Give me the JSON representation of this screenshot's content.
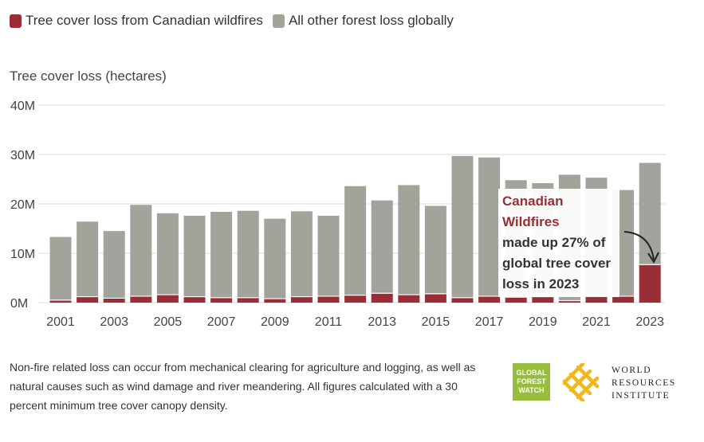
{
  "legend": {
    "series1_label": "Tree cover loss from Canadian wildfires",
    "series2_label": "All other forest loss globally"
  },
  "axis_title": "Tree cover loss (hectares)",
  "callout": {
    "title": "Canadian Wildfires",
    "body": "made up 27% of global tree cover loss in 2023"
  },
  "footnote": "Non-fire related loss can occur from mechanical clearing for agriculture and logging, as well as natural causes such as wind damage and river meandering. All figures calculated with a 30 percent minimum tree cover canopy density.",
  "logos": {
    "gfw": "GLOBAL FOREST WATCH",
    "wri_line1": "WORLD",
    "wri_line2": "RESOURCES",
    "wri_line3": "INSTITUTE"
  },
  "colors": {
    "canadian": "#9b2d36",
    "other": "#a3a29b",
    "grid": "#dddddd",
    "gfw_green": "#97bd3d",
    "wri_gold": "#f2b81b"
  },
  "chart_data": {
    "type": "bar",
    "stacked": true,
    "categories": [
      "2001",
      "2002",
      "2003",
      "2004",
      "2005",
      "2006",
      "2007",
      "2008",
      "2009",
      "2010",
      "2011",
      "2012",
      "2013",
      "2014",
      "2015",
      "2016",
      "2017",
      "2018",
      "2019",
      "2020",
      "2021",
      "2022",
      "2023"
    ],
    "x_tick_labels": [
      "2001",
      "2003",
      "2005",
      "2007",
      "2009",
      "2011",
      "2013",
      "2015",
      "2017",
      "2019",
      "2021",
      "2023"
    ],
    "y_tick_labels": [
      "0M",
      "10M",
      "20M",
      "30M",
      "40M"
    ],
    "ylim": [
      0,
      40
    ],
    "y_unit": "million hectares",
    "grid": true,
    "legend_position": "top-left",
    "series": [
      {
        "name": "Tree cover loss from Canadian wildfires",
        "values": [
          0.5,
          1.2,
          0.9,
          1.3,
          1.6,
          1.2,
          1.0,
          1.0,
          0.8,
          1.2,
          1.3,
          1.5,
          1.9,
          1.6,
          1.8,
          1.0,
          1.3,
          1.1,
          1.2,
          0.4,
          1.5,
          1.3,
          7.7
        ]
      },
      {
        "name": "All other forest loss globally",
        "values": [
          12.8,
          15.2,
          13.6,
          18.5,
          16.5,
          16.4,
          17.4,
          17.6,
          16.2,
          17.3,
          16.3,
          22.1,
          18.8,
          22.2,
          17.8,
          28.7,
          28.1,
          23.7,
          23.0,
          25.5,
          23.8,
          21.5,
          20.6
        ]
      }
    ]
  }
}
